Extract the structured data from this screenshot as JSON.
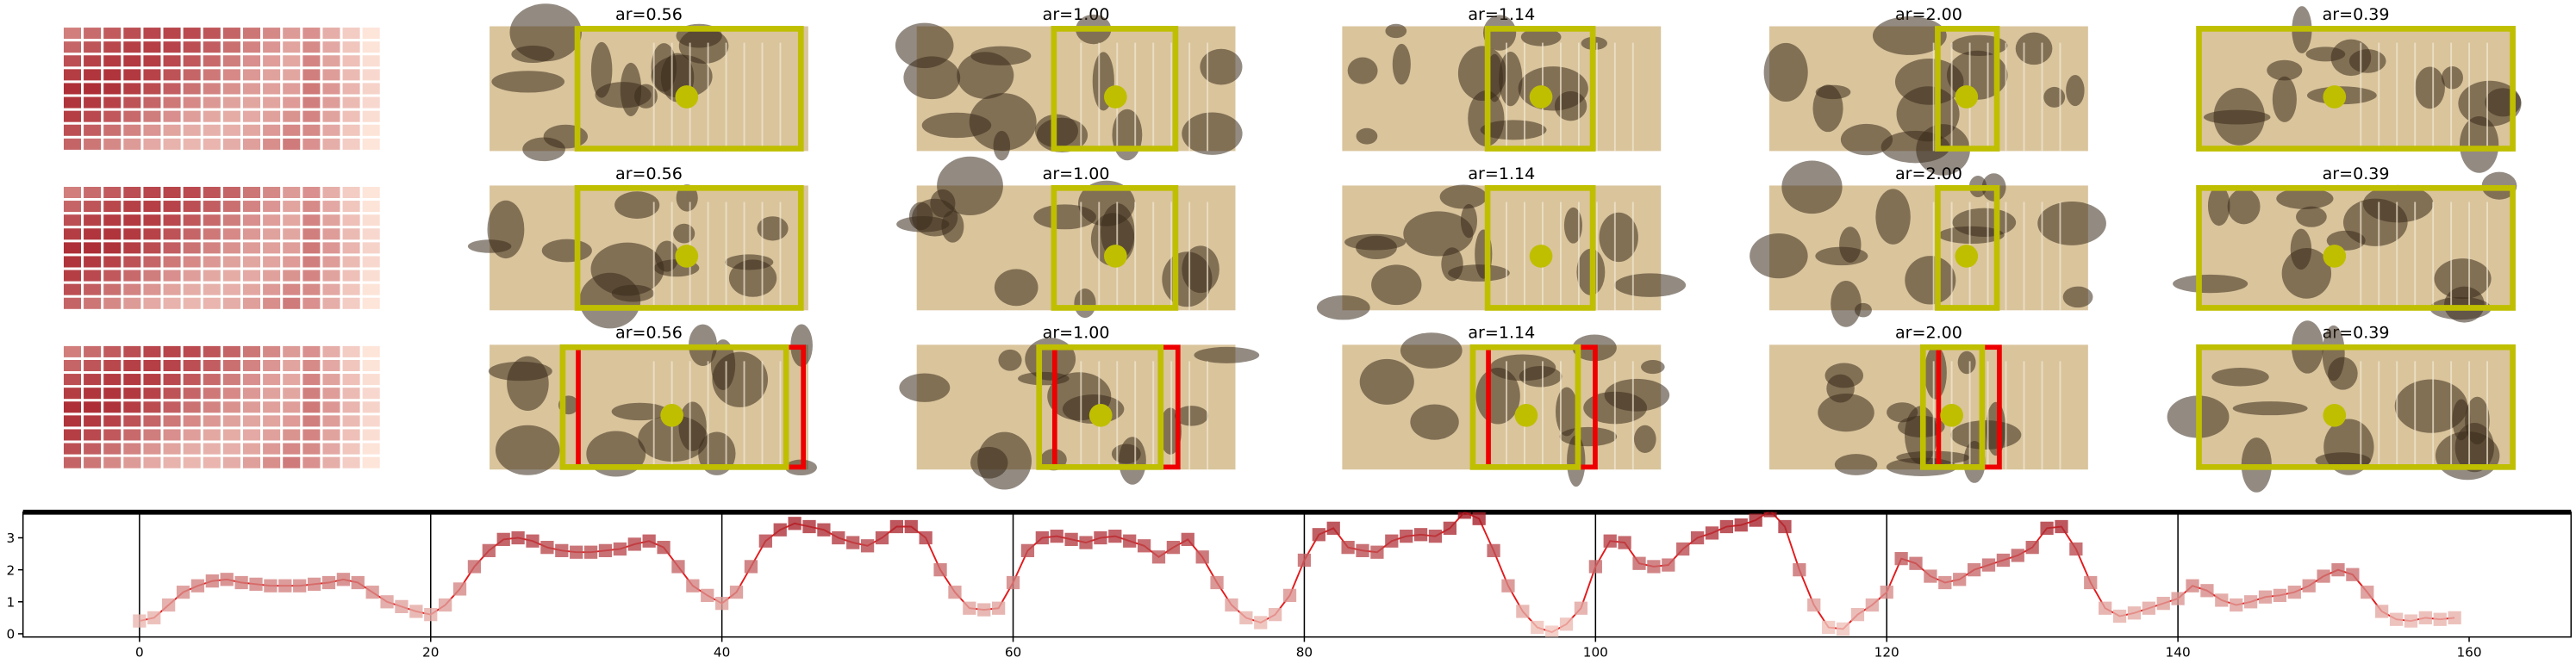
{
  "panels": {
    "rows": [
      [
        null,
        "ar=0.56",
        "ar=1.00",
        "ar=1.14",
        "ar=2.00",
        "ar=0.39"
      ],
      [
        null,
        "ar=0.56",
        "ar=1.00",
        "ar=1.14",
        "ar=2.00",
        "ar=0.39"
      ],
      [
        null,
        "ar=0.56",
        "ar=1.00",
        "ar=1.14",
        "ar=2.00",
        "ar=0.39"
      ]
    ]
  },
  "chart_data": {
    "type": "line",
    "color": "#e31a1c",
    "x": [
      0,
      1,
      2,
      3,
      4,
      5,
      6,
      7,
      8,
      9,
      10,
      11,
      12,
      13,
      14,
      15,
      16,
      17,
      18,
      19,
      20,
      21,
      22,
      23,
      24,
      25,
      26,
      27,
      28,
      29,
      30,
      31,
      32,
      33,
      34,
      35,
      36,
      37,
      38,
      39,
      40,
      41,
      42,
      43,
      44,
      45,
      46,
      47,
      48,
      49,
      50,
      51,
      52,
      53,
      54,
      55,
      56,
      57,
      58,
      59,
      60,
      61,
      62,
      63,
      64,
      65,
      66,
      67,
      68,
      69,
      70,
      71,
      72,
      73,
      74,
      75,
      76,
      77,
      78,
      79,
      80,
      81,
      82,
      83,
      84,
      85,
      86,
      87,
      88,
      89,
      90,
      91,
      92,
      93,
      94,
      95,
      96,
      97,
      98,
      99,
      100,
      101,
      102,
      103,
      104,
      105,
      106,
      107,
      108,
      109,
      110,
      111,
      112,
      113,
      114,
      115,
      116,
      117,
      118,
      119,
      120,
      121,
      122,
      123,
      124,
      125,
      126,
      127,
      128,
      129,
      130,
      131,
      132,
      133,
      134,
      135,
      136,
      137,
      138,
      139,
      140,
      141,
      142,
      143,
      144,
      145,
      146,
      147,
      148,
      149,
      150,
      151,
      152,
      153,
      154,
      155,
      156,
      157,
      158,
      159
    ],
    "values": [
      0.4,
      0.5,
      0.9,
      1.3,
      1.5,
      1.65,
      1.7,
      1.6,
      1.55,
      1.5,
      1.5,
      1.5,
      1.55,
      1.6,
      1.7,
      1.6,
      1.3,
      1.0,
      0.85,
      0.7,
      0.6,
      0.9,
      1.4,
      2.1,
      2.6,
      2.95,
      3.0,
      2.9,
      2.7,
      2.6,
      2.55,
      2.55,
      2.6,
      2.65,
      2.8,
      2.9,
      2.7,
      2.1,
      1.5,
      1.2,
      0.95,
      1.3,
      2.1,
      2.9,
      3.25,
      3.45,
      3.35,
      3.25,
      3.0,
      2.85,
      2.75,
      3.0,
      3.35,
      3.35,
      3.0,
      2.0,
      1.3,
      0.8,
      0.75,
      0.8,
      1.6,
      2.6,
      3.0,
      3.05,
      2.95,
      2.85,
      3.0,
      3.05,
      2.9,
      2.75,
      2.4,
      2.7,
      2.95,
      2.4,
      1.6,
      0.9,
      0.5,
      0.35,
      0.6,
      1.2,
      2.3,
      3.1,
      3.3,
      2.7,
      2.6,
      2.55,
      2.9,
      3.05,
      3.1,
      3.05,
      3.3,
      3.8,
      3.6,
      2.6,
      1.5,
      0.7,
      0.2,
      0.05,
      0.3,
      0.8,
      2.1,
      2.9,
      2.85,
      2.2,
      2.1,
      2.15,
      2.65,
      3.0,
      3.15,
      3.35,
      3.4,
      3.55,
      3.85,
      3.35,
      2.0,
      0.9,
      0.2,
      0.15,
      0.6,
      0.9,
      1.3,
      2.35,
      2.2,
      1.8,
      1.6,
      1.7,
      2.0,
      2.15,
      2.3,
      2.45,
      2.7,
      3.3,
      3.35,
      2.65,
      1.6,
      0.8,
      0.55,
      0.65,
      0.8,
      0.95,
      1.1,
      1.5,
      1.35,
      1.05,
      0.9,
      1.0,
      1.15,
      1.2,
      1.3,
      1.5,
      1.8,
      2.0,
      1.85,
      1.3,
      0.7,
      0.45,
      0.4,
      0.5,
      0.45,
      0.5
    ],
    "xlim": [
      -8,
      167
    ],
    "ylim": [
      -0.1,
      3.8
    ],
    "xticks": [
      0,
      20,
      40,
      60,
      80,
      100,
      120,
      140,
      160
    ],
    "yticks": [
      0,
      1,
      2,
      3
    ],
    "vlines": [
      0,
      20,
      40,
      60,
      80,
      100,
      120,
      140
    ]
  }
}
